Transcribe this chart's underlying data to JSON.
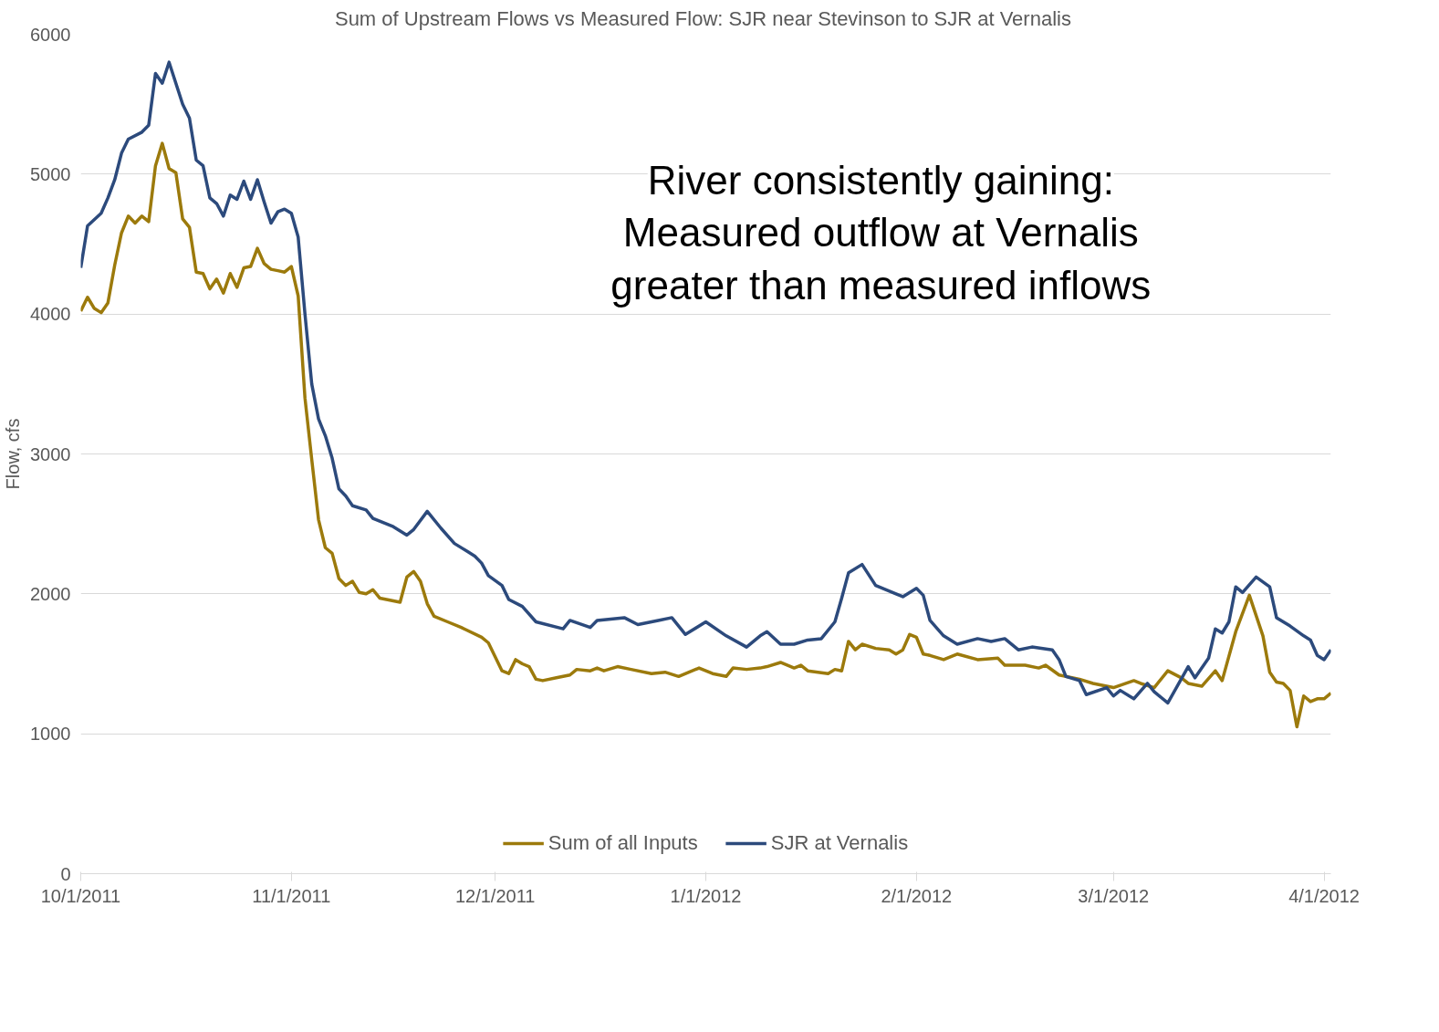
{
  "chart_data": {
    "type": "line",
    "title": "Sum of Upstream Flows vs Measured Flow: SJR near Stevinson to SJR at  Vernalis",
    "ylabel": "Flow, cfs",
    "annotations": [
      "River consistently gaining:\nMeasured outflow at Vernalis\ngreater than measured inflows"
    ],
    "xlim": [
      "2011-10-01",
      "2012-04-02"
    ],
    "xticks": [
      {
        "value": "2011-10-01",
        "label": "10/1/2011"
      },
      {
        "value": "2011-11-01",
        "label": "11/1/2011"
      },
      {
        "value": "2011-12-01",
        "label": "12/1/2011"
      },
      {
        "value": "2012-01-01",
        "label": "1/1/2012"
      },
      {
        "value": "2012-02-01",
        "label": "2/1/2012"
      },
      {
        "value": "2012-03-01",
        "label": "3/1/2012"
      },
      {
        "value": "2012-04-01",
        "label": "4/1/2012"
      }
    ],
    "ylim": [
      0,
      6000
    ],
    "yticks": [
      0,
      1000,
      2000,
      3000,
      4000,
      5000,
      6000
    ],
    "grid": "y",
    "legend": "bottom",
    "marker": "none",
    "line_style": "solid",
    "series": [
      {
        "name": "Sum of all Inputs",
        "color": "#9c7a0c",
        "x": [
          "2011-10-01",
          "2011-10-02",
          "2011-10-03",
          "2011-10-04",
          "2011-10-05",
          "2011-10-06",
          "2011-10-07",
          "2011-10-08",
          "2011-10-09",
          "2011-10-10",
          "2011-10-11",
          "2011-10-12",
          "2011-10-13",
          "2011-10-14",
          "2011-10-15",
          "2011-10-16",
          "2011-10-17",
          "2011-10-18",
          "2011-10-19",
          "2011-10-20",
          "2011-10-21",
          "2011-10-22",
          "2011-10-23",
          "2011-10-24",
          "2011-10-25",
          "2011-10-26",
          "2011-10-27",
          "2011-10-28",
          "2011-10-29",
          "2011-10-30",
          "2011-10-31",
          "2011-11-01",
          "2011-11-02",
          "2011-11-03",
          "2011-11-04",
          "2011-11-05",
          "2011-11-06",
          "2011-11-07",
          "2011-11-08",
          "2011-11-09",
          "2011-11-10",
          "2011-11-11",
          "2011-11-12",
          "2011-11-13",
          "2011-11-14",
          "2011-11-15",
          "2011-11-17",
          "2011-11-18",
          "2011-11-19",
          "2011-11-20",
          "2011-11-21",
          "2011-11-22",
          "2011-11-24",
          "2011-11-26",
          "2011-11-29",
          "2011-11-30",
          "2011-12-02",
          "2011-12-03",
          "2011-12-04",
          "2011-12-05",
          "2011-12-06",
          "2011-12-07",
          "2011-12-08",
          "2011-12-10",
          "2011-12-12",
          "2011-12-13",
          "2011-12-15",
          "2011-12-16",
          "2011-12-17",
          "2011-12-19",
          "2011-12-21",
          "2011-12-24",
          "2011-12-26",
          "2011-12-28",
          "2011-12-31",
          "2012-01-02",
          "2012-01-04",
          "2012-01-05",
          "2012-01-07",
          "2012-01-09",
          "2012-01-10",
          "2012-01-12",
          "2012-01-14",
          "2012-01-15",
          "2012-01-16",
          "2012-01-19",
          "2012-01-20",
          "2012-01-21",
          "2012-01-22",
          "2012-01-23",
          "2012-01-24",
          "2012-01-26",
          "2012-01-28",
          "2012-01-29",
          "2012-01-30",
          "2012-01-31",
          "2012-02-01",
          "2012-02-02",
          "2012-02-03",
          "2012-02-05",
          "2012-02-07",
          "2012-02-10",
          "2012-02-13",
          "2012-02-14",
          "2012-02-17",
          "2012-02-19",
          "2012-02-20",
          "2012-02-22",
          "2012-02-25",
          "2012-02-27",
          "2012-03-01",
          "2012-03-04",
          "2012-03-05",
          "2012-03-07",
          "2012-03-09",
          "2012-03-11",
          "2012-03-12",
          "2012-03-14",
          "2012-03-16",
          "2012-03-17",
          "2012-03-19",
          "2012-03-21",
          "2012-03-23",
          "2012-03-24",
          "2012-03-25",
          "2012-03-26",
          "2012-03-27",
          "2012-03-28",
          "2012-03-29",
          "2012-03-30",
          "2012-03-31",
          "2012-04-01",
          "2012-04-02"
        ],
        "values": [
          4020,
          4120,
          4040,
          4010,
          4080,
          4350,
          4580,
          4700,
          4650,
          4700,
          4660,
          5060,
          5220,
          5040,
          5010,
          4680,
          4620,
          4300,
          4290,
          4180,
          4250,
          4150,
          4290,
          4190,
          4330,
          4340,
          4470,
          4360,
          4320,
          4310,
          4300,
          4340,
          4130,
          3400,
          2960,
          2530,
          2330,
          2290,
          2110,
          2060,
          2090,
          2010,
          2000,
          2030,
          1970,
          1960,
          1940,
          2120,
          2160,
          2090,
          1930,
          1840,
          1800,
          1760,
          1690,
          1650,
          1450,
          1430,
          1530,
          1500,
          1480,
          1390,
          1380,
          1400,
          1420,
          1460,
          1450,
          1470,
          1450,
          1480,
          1460,
          1430,
          1440,
          1410,
          1470,
          1430,
          1410,
          1470,
          1460,
          1470,
          1480,
          1510,
          1470,
          1490,
          1450,
          1430,
          1460,
          1450,
          1660,
          1600,
          1640,
          1610,
          1600,
          1570,
          1600,
          1710,
          1690,
          1570,
          1560,
          1530,
          1570,
          1530,
          1540,
          1490,
          1490,
          1470,
          1490,
          1420,
          1390,
          1360,
          1330,
          1380,
          1360,
          1330,
          1450,
          1400,
          1360,
          1340,
          1450,
          1380,
          1730,
          1990,
          1700,
          1440,
          1370,
          1360,
          1310,
          1050,
          1270,
          1230,
          1250,
          1250,
          1290
        ]
      },
      {
        "name": "SJR at Vernalis",
        "color": "#2c4a7c",
        "x": [
          "2011-10-01",
          "2011-10-02",
          "2011-10-04",
          "2011-10-05",
          "2011-10-06",
          "2011-10-07",
          "2011-10-08",
          "2011-10-10",
          "2011-10-11",
          "2011-10-12",
          "2011-10-13",
          "2011-10-14",
          "2011-10-16",
          "2011-10-17",
          "2011-10-18",
          "2011-10-19",
          "2011-10-20",
          "2011-10-21",
          "2011-10-22",
          "2011-10-23",
          "2011-10-24",
          "2011-10-25",
          "2011-10-26",
          "2011-10-27",
          "2011-10-28",
          "2011-10-29",
          "2011-10-30",
          "2011-10-31",
          "2011-11-01",
          "2011-11-02",
          "2011-11-03",
          "2011-11-04",
          "2011-11-05",
          "2011-11-06",
          "2011-11-07",
          "2011-11-08",
          "2011-11-09",
          "2011-11-10",
          "2011-11-12",
          "2011-11-13",
          "2011-11-16",
          "2011-11-18",
          "2011-11-19",
          "2011-11-21",
          "2011-11-23",
          "2011-11-25",
          "2011-11-27",
          "2011-11-28",
          "2011-11-29",
          "2011-11-30",
          "2011-12-02",
          "2011-12-03",
          "2011-12-05",
          "2011-12-07",
          "2011-12-11",
          "2011-12-12",
          "2011-12-15",
          "2011-12-16",
          "2011-12-20",
          "2011-12-22",
          "2011-12-25",
          "2011-12-27",
          "2011-12-29",
          "2012-01-01",
          "2012-01-04",
          "2012-01-07",
          "2012-01-09",
          "2012-01-10",
          "2012-01-12",
          "2012-01-14",
          "2012-01-16",
          "2012-01-18",
          "2012-01-20",
          "2012-01-21",
          "2012-01-22",
          "2012-01-24",
          "2012-01-26",
          "2012-01-29",
          "2012-01-30",
          "2012-02-01",
          "2012-02-02",
          "2012-02-03",
          "2012-02-05",
          "2012-02-07",
          "2012-02-10",
          "2012-02-12",
          "2012-02-14",
          "2012-02-16",
          "2012-02-18",
          "2012-02-21",
          "2012-02-22",
          "2012-02-23",
          "2012-02-25",
          "2012-02-26",
          "2012-02-29",
          "2012-03-01",
          "2012-03-02",
          "2012-03-04",
          "2012-03-06",
          "2012-03-07",
          "2012-03-09",
          "2012-03-12",
          "2012-03-13",
          "2012-03-15",
          "2012-03-16",
          "2012-03-17",
          "2012-03-18",
          "2012-03-19",
          "2012-03-20",
          "2012-03-22",
          "2012-03-24",
          "2012-03-25",
          "2012-03-27",
          "2012-03-29",
          "2012-03-30",
          "2012-03-31",
          "2012-04-01",
          "2012-04-02"
        ],
        "values": [
          4330,
          4630,
          4720,
          4830,
          4960,
          5150,
          5250,
          5300,
          5350,
          5720,
          5650,
          5800,
          5500,
          5400,
          5100,
          5060,
          4830,
          4790,
          4700,
          4850,
          4820,
          4950,
          4820,
          4960,
          4800,
          4650,
          4730,
          4750,
          4720,
          4550,
          4000,
          3500,
          3250,
          3130,
          2970,
          2750,
          2700,
          2630,
          2600,
          2540,
          2480,
          2420,
          2460,
          2590,
          2470,
          2360,
          2300,
          2270,
          2220,
          2130,
          2060,
          1960,
          1910,
          1800,
          1750,
          1810,
          1760,
          1810,
          1830,
          1780,
          1810,
          1830,
          1710,
          1800,
          1700,
          1620,
          1700,
          1730,
          1640,
          1640,
          1670,
          1680,
          1800,
          1970,
          2150,
          2210,
          2060,
          2000,
          1980,
          2040,
          1990,
          1810,
          1700,
          1640,
          1680,
          1660,
          1680,
          1600,
          1620,
          1600,
          1530,
          1410,
          1380,
          1280,
          1330,
          1270,
          1310,
          1250,
          1360,
          1300,
          1220,
          1480,
          1400,
          1540,
          1750,
          1720,
          1800,
          2050,
          2010,
          2120,
          2050,
          1830,
          1770,
          1700,
          1670,
          1560,
          1530,
          1600
        ]
      }
    ]
  }
}
